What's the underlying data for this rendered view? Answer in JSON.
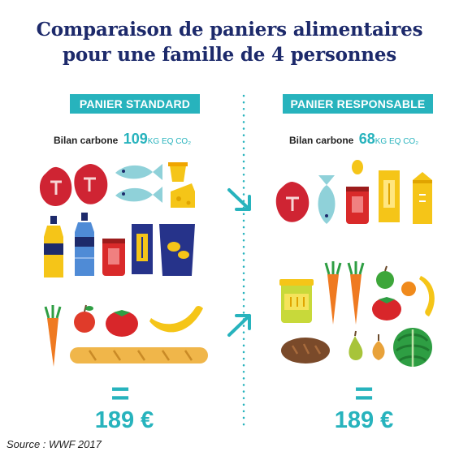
{
  "title_line1": "Comparaison de paniers alimentaires",
  "title_line2": "pour une famille de 4 personnes",
  "left": {
    "badge": "PANIER STANDARD",
    "bilan_label": "Bilan carbone",
    "bilan_value": "109",
    "bilan_unit": "KG EQ CO₂",
    "equals": "=",
    "price": "189 €"
  },
  "right": {
    "badge": "PANIER RESPONSABLE",
    "bilan_label": "Bilan carbone",
    "bilan_value": "68",
    "bilan_unit": "KG EQ CO₂",
    "equals": "=",
    "price": "189 €"
  },
  "source": "Source : WWF 2017",
  "colors": {
    "accent": "#27b3bd",
    "title": "#1d2a6b"
  },
  "icons": [
    "steak-icon",
    "fish-icon",
    "yogurt-icon",
    "cheese-icon",
    "soda-bottle-icon",
    "water-bottle-icon",
    "can-icon",
    "pasta-box-icon",
    "chips-bag-icon",
    "carrot-icon",
    "apple-icon",
    "tomato-icon",
    "banana-icon",
    "baguette-icon",
    "egg-icon",
    "milk-carton-icon",
    "corn-jar-icon",
    "bread-icon",
    "pear-icon",
    "onion-icon",
    "lettuce-icon",
    "orange-icon",
    "arrow-icon"
  ]
}
